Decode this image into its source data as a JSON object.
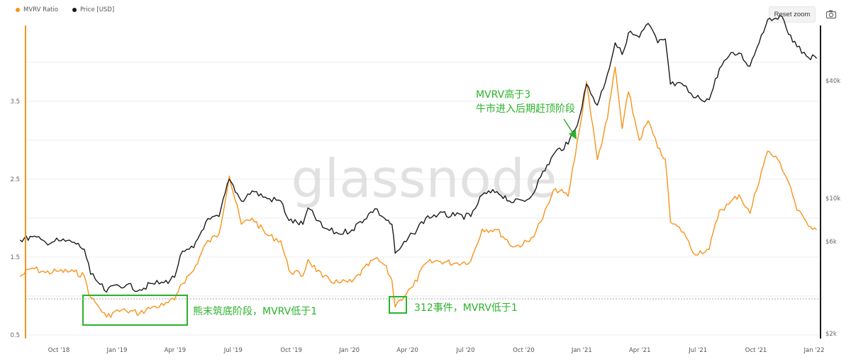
{
  "legend": [
    {
      "label": "MVRV Ratio",
      "color": "#f7931a"
    },
    {
      "label": "Price [USD]",
      "color": "#1a1a1a"
    }
  ],
  "controls": {
    "reset_zoom": "Reset zoom",
    "camera_icon": "camera-icon"
  },
  "watermark": "glassnode",
  "chart_data": {
    "type": "line",
    "x_ticks": [
      "Oct '18",
      "Jan '19",
      "Apr '19",
      "Jul '19",
      "Oct '19",
      "Jan '20",
      "Apr '20",
      "Jul '20",
      "Oct '20",
      "Jan '21",
      "Apr '21",
      "Jul '21",
      "Oct '21",
      "Jan '22"
    ],
    "left_axis": {
      "ticks": [
        "0.5",
        "1.5",
        "2.5",
        "3.5"
      ],
      "ylim": [
        0.5,
        4.5
      ]
    },
    "right_axis": {
      "ticks": [
        "$2k",
        "$6k",
        "$10k",
        "$40k"
      ],
      "scale": "log"
    },
    "reference_line": {
      "value": 1,
      "style": "dotted"
    },
    "series": [
      {
        "name": "MVRV Ratio",
        "color": "#f7931a",
        "axis": "left",
        "points": [
          [
            "2018-08-01",
            1.25
          ],
          [
            "2018-08-20",
            1.36
          ],
          [
            "2018-09-10",
            1.3
          ],
          [
            "2018-10-01",
            1.32
          ],
          [
            "2018-10-25",
            1.31
          ],
          [
            "2018-11-10",
            1.26
          ],
          [
            "2018-11-20",
            0.98
          ],
          [
            "2018-12-01",
            0.88
          ],
          [
            "2018-12-15",
            0.73
          ],
          [
            "2018-12-28",
            0.8
          ],
          [
            "2019-01-15",
            0.81
          ],
          [
            "2019-02-05",
            0.78
          ],
          [
            "2019-02-25",
            0.86
          ],
          [
            "2019-03-15",
            0.88
          ],
          [
            "2019-04-01",
            0.95
          ],
          [
            "2019-04-10",
            1.14
          ],
          [
            "2019-05-01",
            1.33
          ],
          [
            "2019-05-20",
            1.67
          ],
          [
            "2019-06-10",
            1.8
          ],
          [
            "2019-06-26",
            2.54
          ],
          [
            "2019-07-15",
            1.92
          ],
          [
            "2019-08-01",
            2.0
          ],
          [
            "2019-08-25",
            1.78
          ],
          [
            "2019-09-15",
            1.71
          ],
          [
            "2019-09-28",
            1.33
          ],
          [
            "2019-10-20",
            1.26
          ],
          [
            "2019-10-28",
            1.47
          ],
          [
            "2019-11-20",
            1.24
          ],
          [
            "2019-12-15",
            1.17
          ],
          [
            "2020-01-05",
            1.18
          ],
          [
            "2020-02-10",
            1.48
          ],
          [
            "2020-02-25",
            1.4
          ],
          [
            "2020-03-08",
            1.2
          ],
          [
            "2020-03-13",
            0.86
          ],
          [
            "2020-03-20",
            0.95
          ],
          [
            "2020-04-10",
            1.12
          ],
          [
            "2020-04-30",
            1.42
          ],
          [
            "2020-05-20",
            1.45
          ],
          [
            "2020-06-15",
            1.42
          ],
          [
            "2020-07-10",
            1.45
          ],
          [
            "2020-07-28",
            1.86
          ],
          [
            "2020-08-20",
            1.85
          ],
          [
            "2020-09-15",
            1.63
          ],
          [
            "2020-10-10",
            1.7
          ],
          [
            "2020-10-28",
            1.95
          ],
          [
            "2020-11-20",
            2.38
          ],
          [
            "2020-12-10",
            2.28
          ],
          [
            "2020-12-28",
            3.14
          ],
          [
            "2021-01-08",
            3.75
          ],
          [
            "2021-01-25",
            2.75
          ],
          [
            "2021-02-10",
            3.28
          ],
          [
            "2021-02-22",
            3.94
          ],
          [
            "2021-03-05",
            3.15
          ],
          [
            "2021-03-15",
            3.62
          ],
          [
            "2021-04-01",
            3.0
          ],
          [
            "2021-04-15",
            3.25
          ],
          [
            "2021-04-30",
            2.9
          ],
          [
            "2021-05-12",
            2.76
          ],
          [
            "2021-05-20",
            1.95
          ],
          [
            "2021-06-10",
            1.82
          ],
          [
            "2021-06-25",
            1.55
          ],
          [
            "2021-07-20",
            1.6
          ],
          [
            "2021-08-05",
            2.1
          ],
          [
            "2021-08-20",
            2.18
          ],
          [
            "2021-09-05",
            2.3
          ],
          [
            "2021-09-22",
            2.06
          ],
          [
            "2021-10-10",
            2.6
          ],
          [
            "2021-10-20",
            2.86
          ],
          [
            "2021-11-08",
            2.72
          ],
          [
            "2021-11-25",
            2.4
          ],
          [
            "2021-12-05",
            2.1
          ],
          [
            "2021-12-20",
            1.95
          ],
          [
            "2022-01-05",
            1.85
          ]
        ]
      },
      {
        "name": "Price [USD]",
        "color": "#1a1a1a",
        "axis": "right",
        "points": [
          [
            "2018-08-01",
            1.72
          ],
          [
            "2018-08-20",
            1.76
          ],
          [
            "2018-09-10",
            1.69
          ],
          [
            "2018-10-01",
            1.71
          ],
          [
            "2018-10-25",
            1.69
          ],
          [
            "2018-11-10",
            1.6
          ],
          [
            "2018-11-20",
            1.28
          ],
          [
            "2018-12-01",
            1.18
          ],
          [
            "2018-12-15",
            1.05
          ],
          [
            "2018-12-28",
            1.14
          ],
          [
            "2019-01-15",
            1.14
          ],
          [
            "2019-02-05",
            1.08
          ],
          [
            "2019-02-25",
            1.16
          ],
          [
            "2019-03-15",
            1.17
          ],
          [
            "2019-04-01",
            1.24
          ],
          [
            "2019-04-10",
            1.52
          ],
          [
            "2019-05-01",
            1.62
          ],
          [
            "2019-05-20",
            1.95
          ],
          [
            "2019-06-10",
            2.02
          ],
          [
            "2019-06-26",
            2.5
          ],
          [
            "2019-07-15",
            2.22
          ],
          [
            "2019-08-01",
            2.35
          ],
          [
            "2019-08-25",
            2.25
          ],
          [
            "2019-09-15",
            2.22
          ],
          [
            "2019-09-28",
            1.97
          ],
          [
            "2019-10-20",
            1.92
          ],
          [
            "2019-10-28",
            2.13
          ],
          [
            "2019-11-20",
            1.88
          ],
          [
            "2019-12-15",
            1.8
          ],
          [
            "2020-01-05",
            1.85
          ],
          [
            "2020-02-10",
            2.12
          ],
          [
            "2020-02-25",
            2.0
          ],
          [
            "2020-03-08",
            1.92
          ],
          [
            "2020-03-13",
            1.55
          ],
          [
            "2020-03-20",
            1.6
          ],
          [
            "2020-04-10",
            1.8
          ],
          [
            "2020-04-30",
            2.0
          ],
          [
            "2020-05-20",
            2.05
          ],
          [
            "2020-06-15",
            2.03
          ],
          [
            "2020-07-10",
            2.02
          ],
          [
            "2020-07-28",
            2.3
          ],
          [
            "2020-08-20",
            2.34
          ],
          [
            "2020-09-15",
            2.2
          ],
          [
            "2020-10-10",
            2.25
          ],
          [
            "2020-10-28",
            2.53
          ],
          [
            "2020-11-20",
            2.85
          ],
          [
            "2020-12-10",
            2.95
          ],
          [
            "2020-12-28",
            3.3
          ],
          [
            "2021-01-08",
            3.72
          ],
          [
            "2021-01-25",
            3.45
          ],
          [
            "2021-02-10",
            3.85
          ],
          [
            "2021-02-22",
            4.25
          ],
          [
            "2021-03-05",
            4.1
          ],
          [
            "2021-03-15",
            4.38
          ],
          [
            "2021-04-01",
            4.32
          ],
          [
            "2021-04-15",
            4.5
          ],
          [
            "2021-04-30",
            4.25
          ],
          [
            "2021-05-12",
            4.3
          ],
          [
            "2021-05-20",
            3.72
          ],
          [
            "2021-06-10",
            3.7
          ],
          [
            "2021-06-25",
            3.55
          ],
          [
            "2021-07-20",
            3.52
          ],
          [
            "2021-08-05",
            3.92
          ],
          [
            "2021-08-20",
            4.08
          ],
          [
            "2021-09-05",
            4.12
          ],
          [
            "2021-09-22",
            3.95
          ],
          [
            "2021-10-10",
            4.35
          ],
          [
            "2021-10-20",
            4.55
          ],
          [
            "2021-11-08",
            4.6
          ],
          [
            "2021-11-25",
            4.35
          ],
          [
            "2021-12-05",
            4.2
          ],
          [
            "2021-12-20",
            4.08
          ],
          [
            "2022-01-05",
            4.05
          ]
        ]
      }
    ],
    "annotations": [
      {
        "text": "熊末筑底阶段，MVRV低于1",
        "color": "#2ab32a"
      },
      {
        "text": "312事件，MVRV低于1",
        "color": "#2ab32a"
      },
      {
        "text": "MVRV高于3",
        "color": "#2ab32a"
      },
      {
        "text": "牛市进入后期赶顶阶段",
        "color": "#2ab32a"
      }
    ]
  }
}
